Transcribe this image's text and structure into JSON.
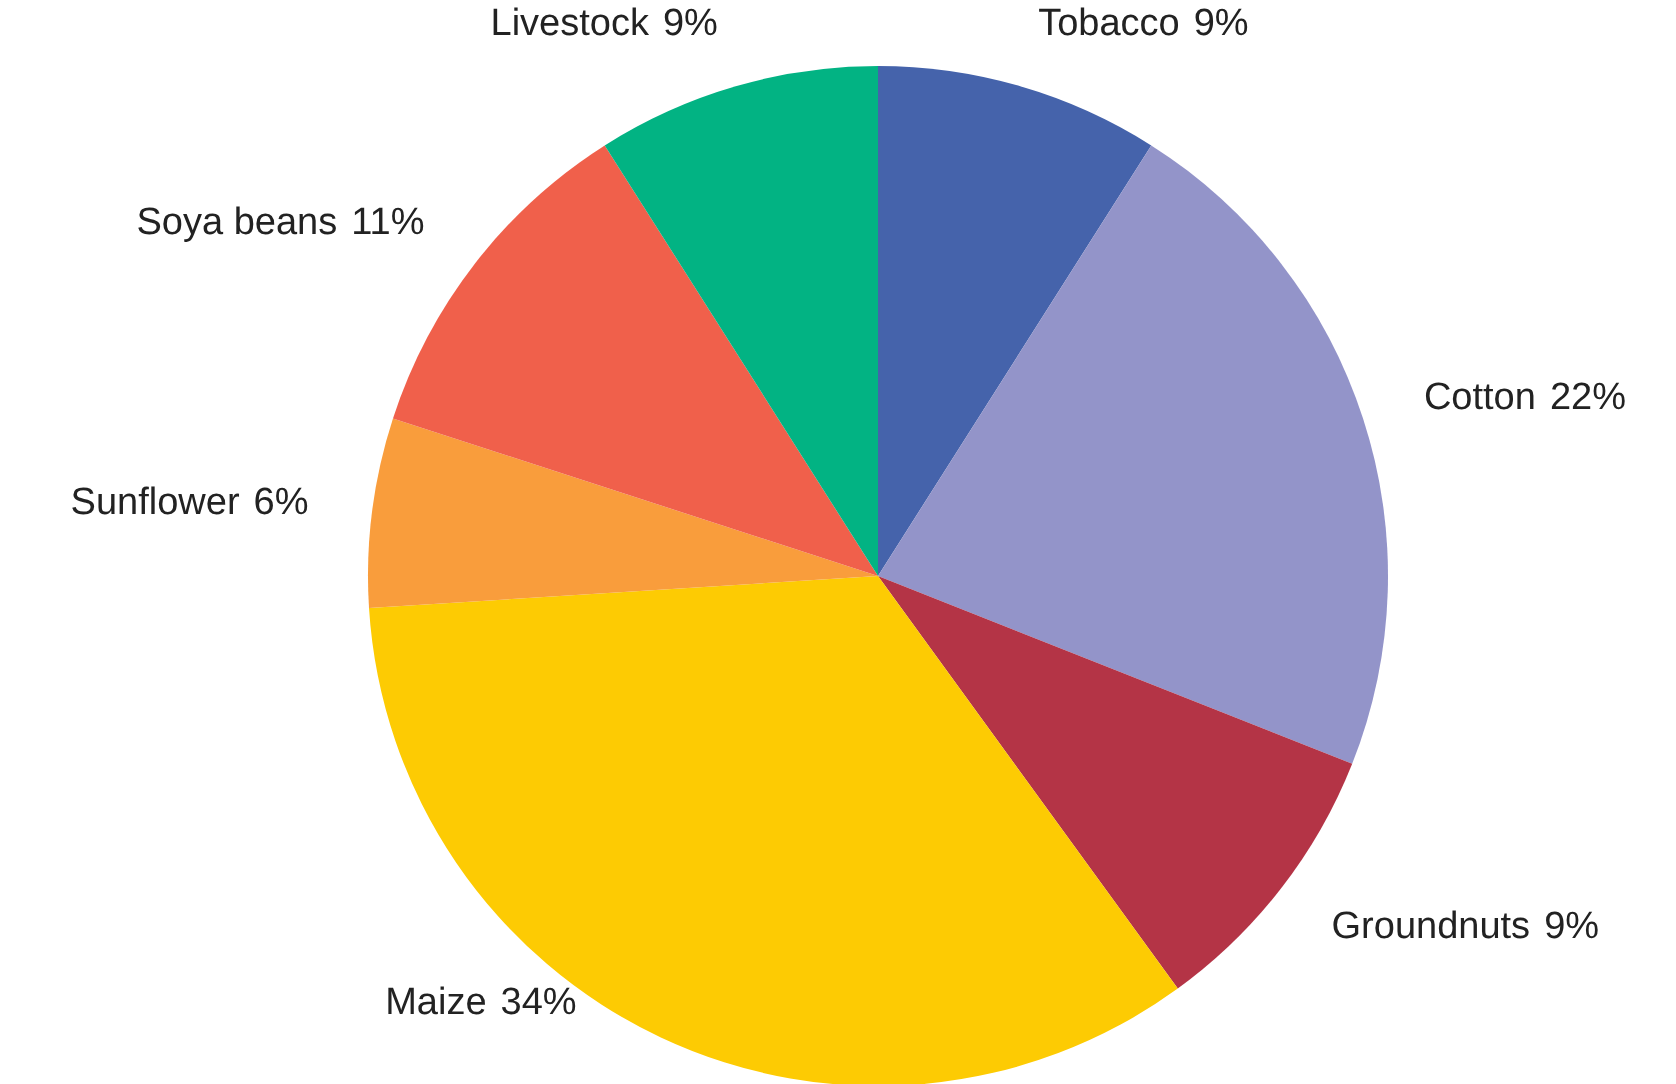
{
  "chart_data": {
    "type": "pie",
    "categories": [
      "Tobacco",
      "Cotton",
      "Groundnuts",
      "Maize",
      "Sunflower",
      "Soya beans",
      "Livestock"
    ],
    "values": [
      9,
      22,
      9,
      34,
      6,
      11,
      9
    ],
    "value_labels": [
      "9%",
      "22%",
      "9%",
      "34%",
      "6%",
      "11%",
      "9%"
    ],
    "colors": [
      "#4563ab",
      "#9394c9",
      "#b43446",
      "#fdcb03",
      "#f99d3c",
      "#f0604b",
      "#02b383"
    ]
  }
}
